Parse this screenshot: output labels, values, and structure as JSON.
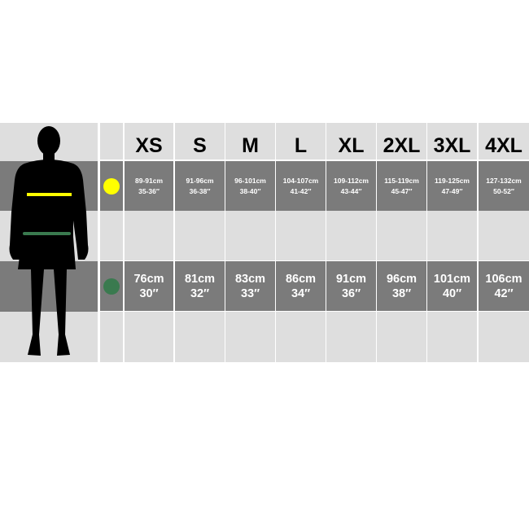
{
  "sizes": [
    "XS",
    "S",
    "M",
    "L",
    "XL",
    "2XL",
    "3XL",
    "4XL"
  ],
  "chest": {
    "color": "#ffff00",
    "cm": [
      "89-91cm",
      "91-96cm",
      "96-101cm",
      "104-107cm",
      "109-112cm",
      "115-119cm",
      "119-125cm",
      "127-132cm"
    ],
    "inch": [
      "35-36″",
      "36-38″",
      "38-40″",
      "41-42″",
      "43-44″",
      "45-47″",
      "47-49″",
      "50-52″"
    ]
  },
  "waist": {
    "color": "#3a7a4f",
    "cm": [
      "76cm",
      "81cm",
      "83cm",
      "86cm",
      "91cm",
      "96cm",
      "101cm",
      "106cm"
    ],
    "inch": [
      "30″",
      "32″",
      "33″",
      "34″",
      "36″",
      "38″",
      "40″",
      "42″"
    ]
  }
}
